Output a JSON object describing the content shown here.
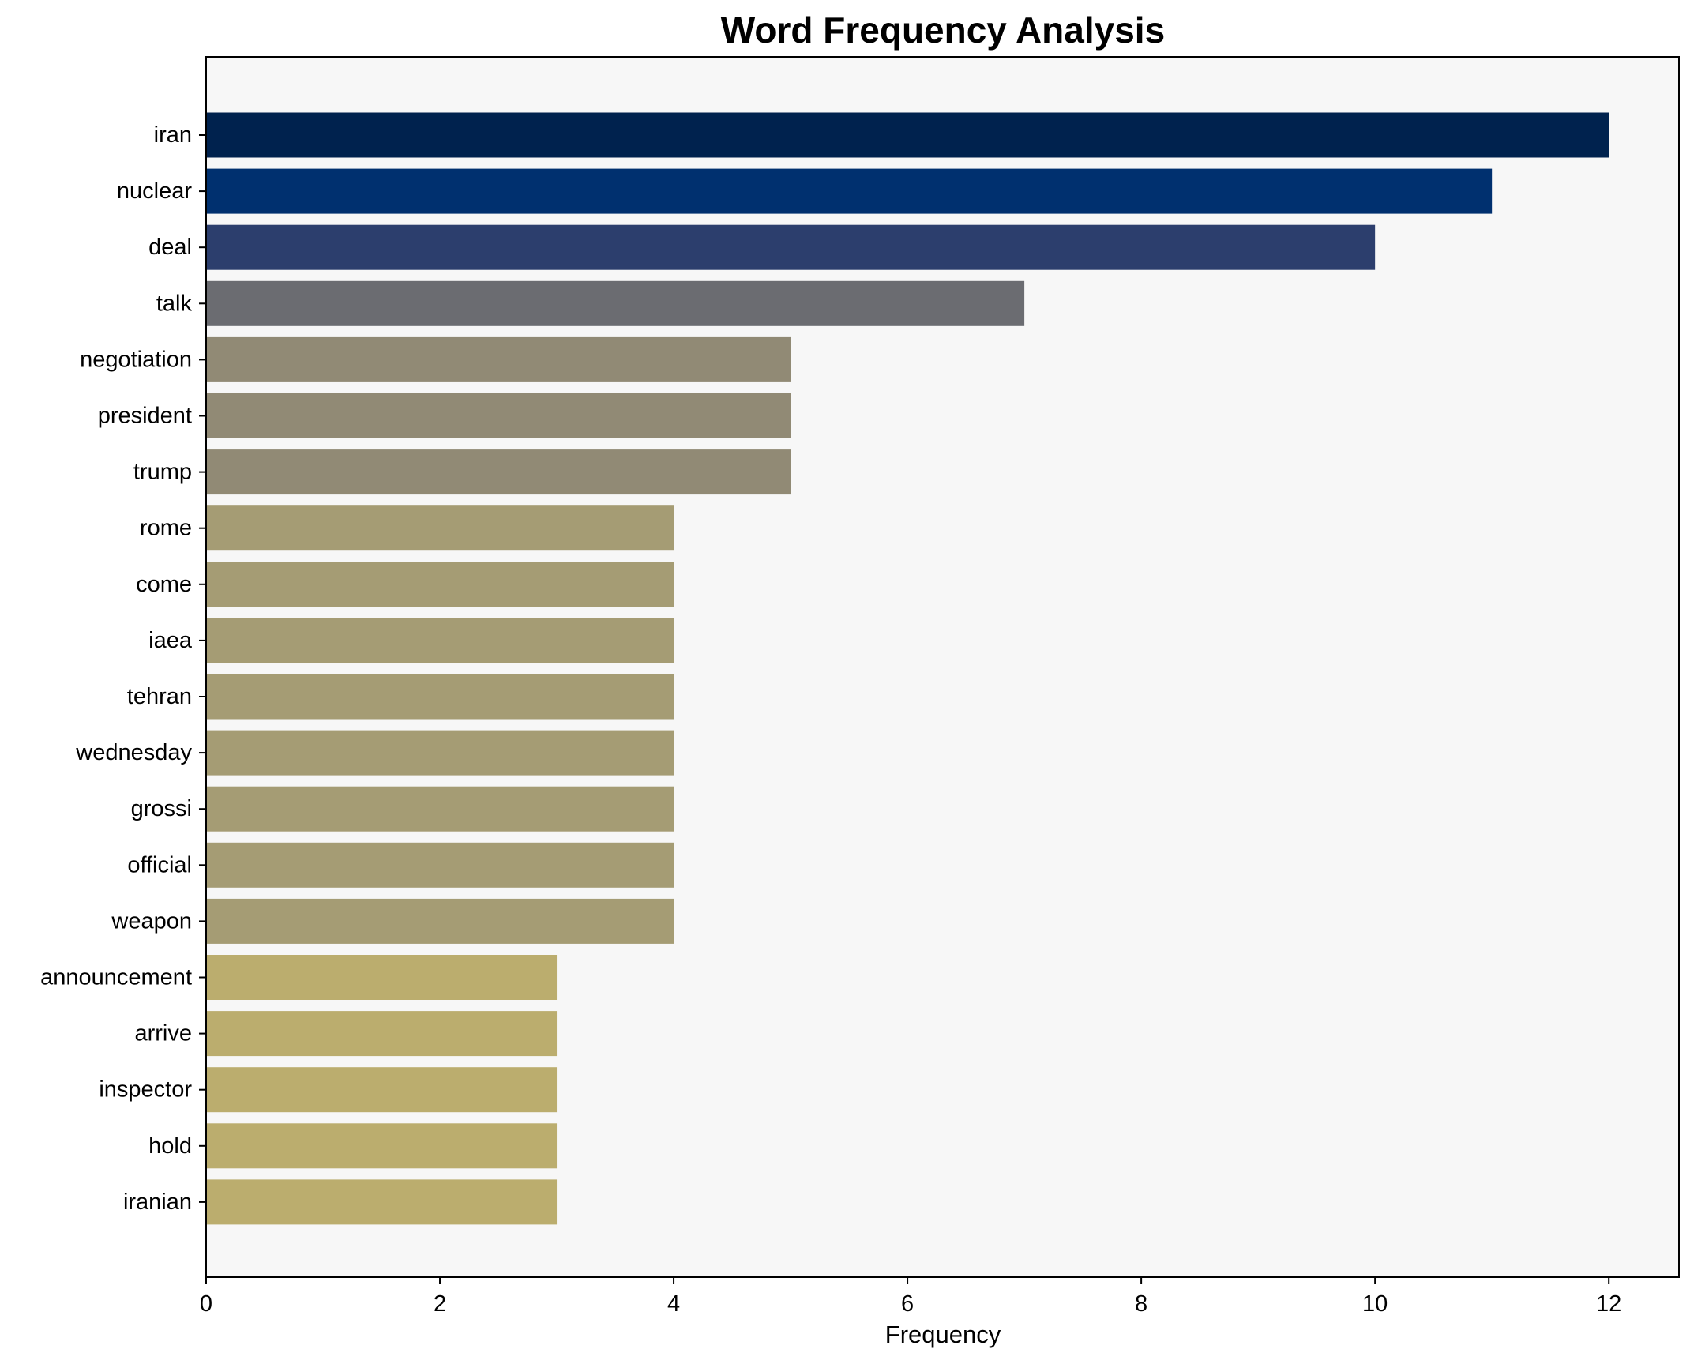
{
  "chart_data": {
    "type": "bar",
    "orientation": "horizontal",
    "title": "Word Frequency Analysis",
    "xlabel": "Frequency",
    "ylabel": "",
    "xlim": [
      0,
      12.6
    ],
    "xticks": [
      0,
      2,
      4,
      6,
      8,
      10,
      12
    ],
    "grid": false,
    "categories": [
      "iran",
      "nuclear",
      "deal",
      "talk",
      "negotiation",
      "president",
      "trump",
      "rome",
      "come",
      "iaea",
      "tehran",
      "wednesday",
      "grossi",
      "official",
      "weapon",
      "announcement",
      "arrive",
      "inspector",
      "hold",
      "iranian"
    ],
    "values": [
      12,
      11,
      10,
      7,
      5,
      5,
      5,
      4,
      4,
      4,
      4,
      4,
      4,
      4,
      4,
      3,
      3,
      3,
      3,
      3
    ],
    "colors": [
      "#00224e",
      "#00306f",
      "#2c3e6d",
      "#6b6c71",
      "#918a75",
      "#918a75",
      "#918a75",
      "#a59c74",
      "#a59c74",
      "#a59c74",
      "#a59c74",
      "#a59c74",
      "#a59c74",
      "#a59c74",
      "#a59c74",
      "#bbad6e",
      "#bbad6e",
      "#bbad6e",
      "#bbad6e",
      "#bbad6e"
    ],
    "plot_background": "#f7f7f7"
  }
}
